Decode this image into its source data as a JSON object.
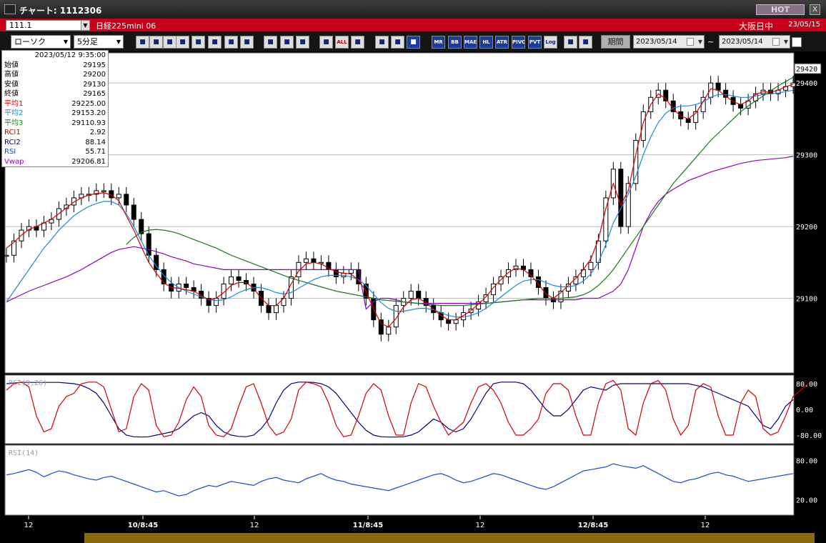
{
  "window": {
    "title": "チャート: 1112306",
    "hot_label": "HOT",
    "close_label": "X"
  },
  "infobar": {
    "code": "111.1",
    "name": "日経225mini 06",
    "market": "大阪日中",
    "date": "23/05/15"
  },
  "toolbar": {
    "chart_type": "ローソク",
    "interval": "5分足",
    "buttons": [
      "search",
      "cross",
      "ohlc",
      "zoom",
      "grid",
      "alert",
      "erase",
      "pen",
      "cursor",
      "arrow",
      "fit-left",
      "fit-right",
      "all",
      "tools",
      "brush",
      "color",
      "ma",
      "mr",
      "bb",
      "mae",
      "hl",
      "atr",
      "pivot",
      "pvt",
      "log",
      "table"
    ],
    "button_labels": {
      "all": "ALL",
      "mr": "MR",
      "bb": "BB",
      "mae": "MAE",
      "hl": "HL",
      "atr": "ATR",
      "pivot": "PIVOT",
      "pvt": "PVT",
      "log": "Log"
    },
    "period_label": "期間",
    "from_date": "2023/05/14",
    "to_date": "2023/05/14",
    "tilde": "~"
  },
  "readout": {
    "datetime": "2023/05/12 9:35:00",
    "rows": [
      {
        "label": "始値",
        "value": "29195",
        "color": "#000000"
      },
      {
        "label": "高値",
        "value": "29200",
        "color": "#000000"
      },
      {
        "label": "安値",
        "value": "29130",
        "color": "#000000"
      },
      {
        "label": "終値",
        "value": "29165",
        "color": "#000000"
      },
      {
        "label": "平均1",
        "value": "29225.00",
        "color": "#d40000"
      },
      {
        "label": "平均2",
        "value": "29153.20",
        "color": "#1a88d8"
      },
      {
        "label": "平均3",
        "value": "29110.93",
        "color": "#1a8a1a"
      },
      {
        "label": "RCI1",
        "value": "2.92",
        "color": "#c00000"
      },
      {
        "label": "RCI2",
        "value": "88.14",
        "color": "#000080"
      },
      {
        "label": "RSI",
        "value": "55.71",
        "color": "#1a4ad8"
      },
      {
        "label": "Vwap",
        "value": "29206.81",
        "color": "#9a00c8"
      }
    ]
  },
  "chart_data": [
    {
      "type": "line",
      "name": "price",
      "ylim": [
        29000,
        29440
      ],
      "yticks": [
        29100,
        29200,
        29300,
        29400
      ],
      "last_price": "29420",
      "closes": [
        29160,
        29180,
        29195,
        29200,
        29195,
        29205,
        29210,
        29225,
        29230,
        29240,
        29245,
        29245,
        29250,
        29250,
        29240,
        29245,
        29230,
        29210,
        29190,
        29160,
        29140,
        29120,
        29110,
        29120,
        29115,
        29110,
        29100,
        29090,
        29100,
        29120,
        29130,
        29125,
        29120,
        29110,
        29090,
        29080,
        29090,
        29100,
        29130,
        29150,
        29155,
        29150,
        29150,
        29140,
        29130,
        29135,
        29140,
        29120,
        29100,
        29070,
        29050,
        29060,
        29090,
        29100,
        29110,
        29100,
        29090,
        29080,
        29070,
        29065,
        29070,
        29080,
        29085,
        29095,
        29105,
        29120,
        29130,
        29140,
        29145,
        29140,
        29130,
        29115,
        29100,
        29095,
        29110,
        29120,
        29130,
        29140,
        29150,
        29180,
        29240,
        29280,
        29200,
        29260,
        29320,
        29360,
        29380,
        29390,
        29375,
        29360,
        29350,
        29345,
        29360,
        29380,
        29400,
        29390,
        29380,
        29370,
        29365,
        29375,
        29385,
        29390,
        29385,
        29390,
        29395,
        29400
      ],
      "ma1": [
        29170,
        29178,
        29188,
        29196,
        29200,
        29205,
        29210,
        29218,
        29226,
        29234,
        29240,
        29244,
        29246,
        29247,
        29244,
        29236,
        29215,
        29195,
        29172,
        29150,
        29135,
        29122,
        29115,
        29114,
        29112,
        29110,
        29104,
        29098,
        29100,
        29108,
        29118,
        29122,
        29122,
        29114,
        29100,
        29090,
        29090,
        29100,
        29120,
        29138,
        29148,
        29150,
        29148,
        29142,
        29137,
        29135,
        29134,
        29125,
        29110,
        29085,
        29065,
        29060,
        29072,
        29088,
        29098,
        29100,
        29094,
        29085,
        29076,
        29070,
        29070,
        29076,
        29083,
        29092,
        29102,
        29115,
        29126,
        29136,
        29142,
        29140,
        29132,
        29120,
        29106,
        29100,
        29108,
        29118,
        29128,
        29140,
        29155,
        29182,
        29225,
        29260,
        29230,
        29250,
        29300,
        29345,
        29370,
        29385,
        29378,
        29364,
        29354,
        29350,
        29358,
        29374,
        29392,
        29390,
        29382,
        29374,
        29370,
        29375,
        29384,
        29388,
        29387,
        29390,
        29395,
        29398
      ],
      "ma2": [
        29095,
        29110,
        29125,
        29140,
        29155,
        29170,
        29182,
        29195,
        29205,
        29215,
        29222,
        29228,
        29232,
        29235,
        29235,
        29230,
        29218,
        29200,
        29180,
        29160,
        29145,
        29132,
        29122,
        29115,
        29110,
        29106,
        29102,
        29098,
        29097,
        29098,
        29102,
        29108,
        29112,
        29115,
        29115,
        29112,
        29108,
        29106,
        29108,
        29114,
        29120,
        29126,
        29130,
        29132,
        29132,
        29132,
        29130,
        29126,
        29118,
        29106,
        29094,
        29086,
        29082,
        29082,
        29084,
        29086,
        29086,
        29084,
        29080,
        29076,
        29074,
        29074,
        29076,
        29080,
        29086,
        29094,
        29102,
        29110,
        29118,
        29124,
        29126,
        29126,
        29122,
        29118,
        29116,
        29116,
        29118,
        29124,
        29134,
        29150,
        29175,
        29205,
        29225,
        29245,
        29270,
        29300,
        29325,
        29345,
        29358,
        29365,
        29368,
        29368,
        29370,
        29374,
        29380,
        29384,
        29384,
        29382,
        29380,
        29380,
        29382,
        29384,
        29385,
        29386,
        29388,
        29390
      ],
      "ma3": [
        null,
        null,
        null,
        null,
        null,
        null,
        null,
        null,
        null,
        null,
        null,
        null,
        null,
        null,
        null,
        null,
        29175,
        29185,
        29192,
        29195,
        29196,
        29195,
        29193,
        29190,
        29186,
        29182,
        29178,
        29174,
        29170,
        29165,
        29160,
        29156,
        29152,
        29148,
        29144,
        29140,
        29136,
        29132,
        29128,
        29125,
        29122,
        29119,
        29116,
        29113,
        29110,
        29108,
        29106,
        29104,
        29102,
        29100,
        29098,
        29097,
        29096,
        29095,
        29094,
        29093,
        29092,
        29091,
        29090,
        29090,
        29090,
        29090,
        29091,
        29092,
        29093,
        29094,
        29095,
        29096,
        29097,
        29098,
        29099,
        29100,
        29100,
        29100,
        29100,
        29101,
        29102,
        29105,
        29110,
        29118,
        29128,
        29140,
        29155,
        29170,
        29185,
        29200,
        29215,
        29230,
        29245,
        29260,
        29272,
        29284,
        29296,
        29308,
        29320,
        29330,
        29340,
        29350,
        29360,
        29368,
        29375,
        29382,
        29389,
        29396,
        29402,
        29408
      ],
      "vwap": [
        29095,
        29100,
        29105,
        29110,
        29114,
        29118,
        29122,
        29126,
        29130,
        29135,
        29140,
        29146,
        29152,
        29158,
        29164,
        29168,
        29170,
        29172,
        29170,
        29168,
        29165,
        29162,
        29158,
        29155,
        29152,
        29148,
        29146,
        29144,
        29142,
        29140,
        29140,
        29140,
        29140,
        29140,
        29140,
        29140,
        29140,
        29140,
        29140,
        29140,
        29140,
        29140,
        29140,
        29140,
        29140,
        29140,
        29140,
        29140,
        29085,
        29095,
        29100,
        29100,
        29098,
        29095,
        29094,
        29093,
        29093,
        29093,
        29093,
        29093,
        29093,
        29093,
        29093,
        29093,
        29093,
        29094,
        29095,
        29096,
        29097,
        29098,
        29098,
        29098,
        29098,
        29098,
        29098,
        29098,
        29098,
        29100,
        29100,
        29100,
        29105,
        29110,
        29120,
        29140,
        29170,
        29200,
        29220,
        29235,
        29245,
        29252,
        29258,
        29264,
        29268,
        29272,
        29276,
        29279,
        29282,
        29285,
        29288,
        29290,
        29292,
        29293,
        29294,
        29295,
        29296,
        29298
      ]
    },
    {
      "type": "line",
      "name": "RCI(9,26)",
      "ylim": [
        -100,
        100
      ],
      "yticks": [
        "80.00",
        "0.00",
        "-80.00"
      ],
      "series": [
        {
          "name": "RCI1",
          "values": [
            60,
            80,
            85,
            70,
            -20,
            -70,
            -60,
            10,
            40,
            50,
            80,
            85,
            85,
            70,
            0,
            -70,
            -60,
            40,
            80,
            60,
            -50,
            -85,
            -80,
            -40,
            30,
            70,
            40,
            -50,
            -80,
            -85,
            -60,
            10,
            70,
            80,
            20,
            -50,
            -80,
            -70,
            -30,
            60,
            85,
            80,
            70,
            20,
            -50,
            -85,
            -80,
            -20,
            50,
            80,
            60,
            -20,
            -80,
            -80,
            20,
            80,
            70,
            10,
            -40,
            -80,
            -60,
            -40,
            20,
            70,
            80,
            60,
            20,
            -40,
            -80,
            -80,
            -60,
            -30,
            50,
            80,
            80,
            60,
            -20,
            -80,
            -80,
            20,
            80,
            90,
            60,
            -60,
            -80,
            20,
            80,
            90,
            60,
            -30,
            -80,
            -50,
            60,
            80,
            70,
            -20,
            -80,
            -80,
            20,
            60,
            40,
            -60,
            -80,
            -70,
            -20,
            40,
            60,
            80
          ]
        },
        {
          "name": "RCI2",
          "values": [
            80,
            82,
            84,
            84,
            84,
            84,
            84,
            84,
            82,
            80,
            75,
            65,
            50,
            20,
            -20,
            -60,
            -80,
            -85,
            -86,
            -85,
            -80,
            -75,
            -70,
            -60,
            -40,
            -20,
            -10,
            -20,
            -50,
            -70,
            -80,
            -84,
            -85,
            -80,
            -60,
            -30,
            20,
            60,
            80,
            85,
            85,
            84,
            80,
            70,
            50,
            20,
            -10,
            -40,
            -65,
            -80,
            -85,
            -86,
            -86,
            -85,
            -80,
            -70,
            -50,
            -30,
            -40,
            -60,
            -70,
            -60,
            -30,
            10,
            50,
            80,
            85,
            85,
            85,
            80,
            60,
            30,
            0,
            -20,
            -20,
            0,
            30,
            60,
            70,
            65,
            60,
            75,
            80,
            80,
            80,
            80,
            80,
            80,
            80,
            80,
            80,
            80,
            75,
            70,
            60,
            50,
            40,
            30,
            20,
            10,
            -20,
            -50,
            -60,
            -30,
            10,
            30
          ]
        }
      ]
    },
    {
      "type": "line",
      "name": "RSI(14)",
      "ylim": [
        0,
        100
      ],
      "yticks": [
        "80.00",
        "20.00"
      ],
      "series": [
        {
          "name": "RSI",
          "values": [
            58,
            60,
            63,
            66,
            62,
            55,
            60,
            64,
            62,
            58,
            55,
            52,
            50,
            54,
            56,
            52,
            48,
            44,
            40,
            36,
            32,
            34,
            30,
            26,
            28,
            34,
            38,
            42,
            40,
            44,
            48,
            46,
            44,
            42,
            48,
            52,
            54,
            50,
            48,
            46,
            52,
            56,
            60,
            54,
            50,
            48,
            44,
            42,
            40,
            38,
            36,
            34,
            38,
            42,
            46,
            50,
            54,
            58,
            60,
            56,
            50,
            46,
            48,
            52,
            56,
            60,
            58,
            54,
            50,
            46,
            42,
            38,
            36,
            40,
            46,
            52,
            58,
            64,
            66,
            68,
            70,
            75,
            72,
            70,
            68,
            72,
            66,
            60,
            54,
            48,
            46,
            50,
            52,
            56,
            60,
            62,
            58,
            56,
            52,
            48,
            50,
            52,
            54,
            56,
            58,
            60
          ]
        }
      ]
    }
  ],
  "time_axis": [
    "12",
    "10/8:45",
    "12",
    "11/8:45",
    "12",
    "12/8:45",
    "12"
  ]
}
